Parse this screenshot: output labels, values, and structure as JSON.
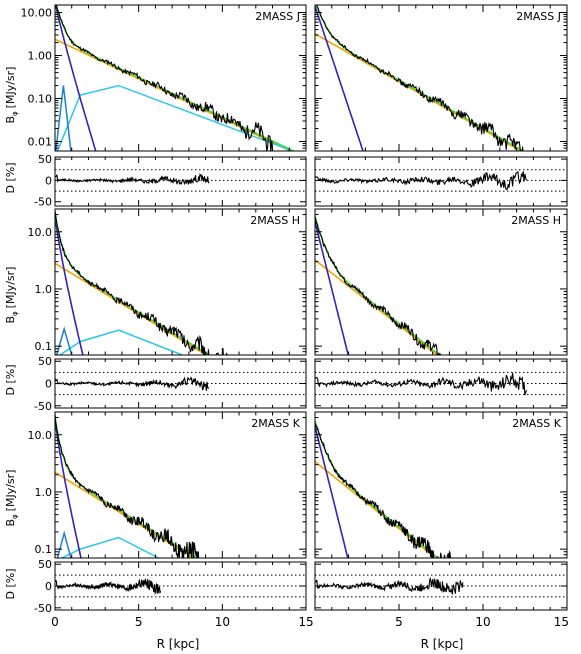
{
  "figure": {
    "ylabel_main": "Bφ [MJy/sr]",
    "ylabel_main_base": "B",
    "ylabel_main_sub": "φ",
    "ylabel_main_units": "[MJy/sr]",
    "ylabel_resid": "D [%]",
    "xlabel": "R [kpc]",
    "x_ticks_left": [
      "0",
      "5",
      "10",
      "15"
    ],
    "x_ticks_right": [
      "5",
      "10",
      "15"
    ]
  },
  "colors": {
    "bulge": "#3b1fb8",
    "disk": "#f5a300",
    "ring1": "#1e7fd0",
    "ring2": "#29c6ef",
    "total": "#3ddc3d",
    "data": "#000000"
  },
  "chart_data": [
    {
      "type": "line",
      "label": "2MASS J",
      "column": "left",
      "row": 0,
      "log_y": true,
      "xlim": [
        0,
        15
      ],
      "ylim": [
        0.006,
        15
      ],
      "yticks": [
        "10.00",
        "1.00",
        "0.10",
        "0.01"
      ],
      "bulge": {
        "I0": 18,
        "n": 1.1,
        "Re": 0.5
      },
      "disk": {
        "I0": 2.4,
        "h": 2.35
      },
      "ring1": {
        "r0": 0.5,
        "w": 0.14,
        "I0": 0.2,
        "pts": [
          [
            0.05,
            0.006
          ],
          [
            0.5,
            0.2
          ],
          [
            0.95,
            0.006
          ]
        ]
      },
      "ring2": {
        "pts": [
          [
            0.15,
            0.006
          ],
          [
            1.5,
            0.12
          ],
          [
            3.8,
            0.2
          ],
          [
            14.2,
            0.006
          ]
        ]
      },
      "data_end": 13.0,
      "resid": {
        "end": 9.2,
        "ylim": [
          -60,
          55
        ],
        "yticks": [
          "50",
          "0",
          "-50"
        ],
        "amp": 7
      }
    },
    {
      "type": "line",
      "label": "2MASS J",
      "column": "right",
      "row": 0,
      "log_y": true,
      "xlim": [
        0,
        15
      ],
      "ylim": [
        0.006,
        15
      ],
      "yticks": [],
      "bulge": {
        "I0": 14,
        "n": 1.0,
        "Re": 0.7
      },
      "disk": {
        "I0": 3.2,
        "h": 1.95
      },
      "data_end": 12.7,
      "resid": {
        "end": 12.6,
        "ylim": [
          -60,
          55
        ],
        "yticks": [],
        "amp": 12
      }
    },
    {
      "type": "line",
      "label": "2MASS H",
      "column": "left",
      "row": 1,
      "log_y": true,
      "xlim": [
        0,
        15
      ],
      "ylim": [
        0.07,
        25
      ],
      "yticks": [
        "10.0",
        "1.0",
        "0.1"
      ],
      "bulge": {
        "I0": 20,
        "n": 1.2,
        "Re": 0.45
      },
      "disk": {
        "I0": 2.8,
        "h": 2.45
      },
      "ring1": {
        "pts": [
          [
            0.1,
            0.07
          ],
          [
            0.55,
            0.2
          ],
          [
            1.0,
            0.07
          ]
        ]
      },
      "ring2": {
        "pts": [
          [
            0.3,
            0.07
          ],
          [
            1.5,
            0.12
          ],
          [
            3.8,
            0.19
          ],
          [
            7.6,
            0.07
          ]
        ]
      },
      "data_end": 11.2,
      "resid": {
        "end": 9.2,
        "ylim": [
          -55,
          55
        ],
        "yticks": [
          "50",
          "0",
          "-50"
        ],
        "amp": 8
      }
    },
    {
      "type": "line",
      "label": "2MASS H",
      "column": "right",
      "row": 1,
      "log_y": true,
      "xlim": [
        0,
        15
      ],
      "ylim": [
        0.07,
        25
      ],
      "yticks": [],
      "bulge": {
        "I0": 15,
        "n": 1.0,
        "Re": 0.7
      },
      "disk": {
        "I0": 3.2,
        "h": 1.9
      },
      "data_end": 11.2,
      "resid": {
        "end": 12.6,
        "ylim": [
          -55,
          55
        ],
        "yticks": [],
        "amp": 13
      }
    },
    {
      "type": "line",
      "label": "2MASS K",
      "column": "left",
      "row": 2,
      "log_y": true,
      "xlim": [
        0,
        15
      ],
      "ylim": [
        0.07,
        25
      ],
      "yticks": [
        "10.0",
        "1.0",
        "0.1"
      ],
      "bulge": {
        "I0": 20,
        "n": 1.2,
        "Re": 0.42
      },
      "disk": {
        "I0": 2.2,
        "h": 2.4
      },
      "ring1": {
        "pts": [
          [
            0.15,
            0.07
          ],
          [
            0.55,
            0.19
          ],
          [
            0.95,
            0.07
          ]
        ]
      },
      "ring2": {
        "pts": [
          [
            0.4,
            0.07
          ],
          [
            1.5,
            0.1
          ],
          [
            3.8,
            0.16
          ],
          [
            6.2,
            0.07
          ]
        ]
      },
      "data_end": 9.2,
      "resid": {
        "end": 6.3,
        "ylim": [
          -55,
          55
        ],
        "yticks": [
          "50",
          "0",
          "-50"
        ],
        "amp": 10
      }
    },
    {
      "type": "line",
      "label": "2MASS K",
      "column": "right",
      "row": 2,
      "log_y": true,
      "xlim": [
        0,
        15
      ],
      "ylim": [
        0.07,
        25
      ],
      "yticks": [],
      "bulge": {
        "I0": 14,
        "n": 1.0,
        "Re": 0.7
      },
      "disk": {
        "I0": 3.4,
        "h": 1.85
      },
      "data_end": 8.6,
      "resid": {
        "end": 8.8,
        "ylim": [
          -55,
          55
        ],
        "yticks": [],
        "amp": 12
      }
    }
  ]
}
